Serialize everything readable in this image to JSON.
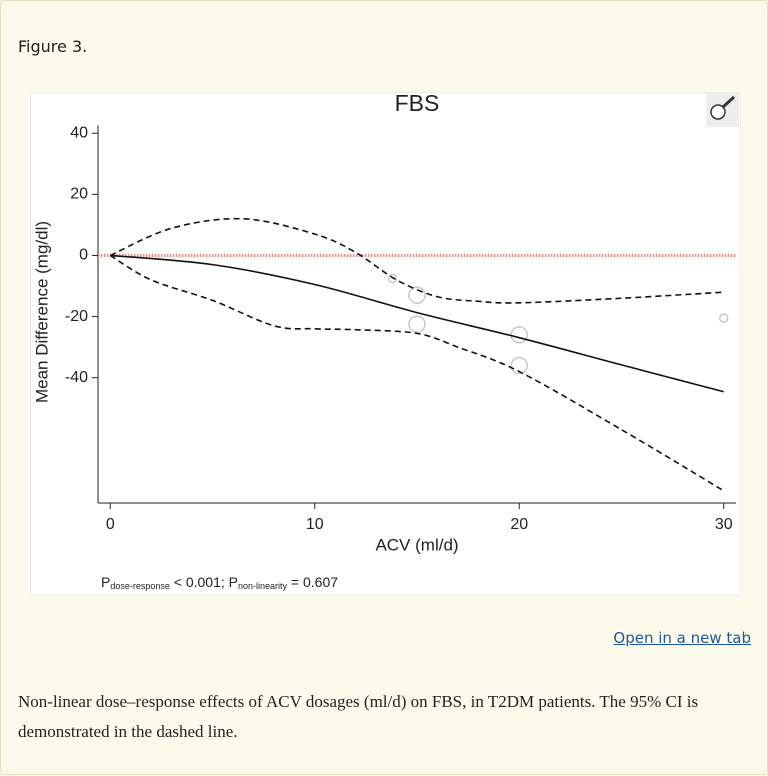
{
  "figure_label": "Figure 3.",
  "link": "Open in a new tab",
  "caption": "Non-linear dose–response effects of ACV dosages (ml/d) on FBS, in T2DM patients. The 95% CI is demonstrated in the dashed line.",
  "chart_data": {
    "type": "line",
    "title": "FBS",
    "x_label": "ACV (ml/d)",
    "y_label": "Mean Difference (mg/dl)",
    "xlim": [
      -0.6,
      30.6
    ],
    "ylim": [
      -81,
      44
    ],
    "xticks": [
      0,
      10,
      20,
      30
    ],
    "yticks": [
      40,
      20,
      0,
      -20,
      -40
    ],
    "reference_line": {
      "value": 0,
      "color": "#e88a8a"
    },
    "series": [
      {
        "color": "#111111",
        "dash": false,
        "x": [
          0,
          5,
          10,
          15,
          20,
          25,
          30
        ],
        "values": [
          0,
          -3,
          -9.5,
          -18.7,
          -26.9,
          -35.8,
          -44.6
        ]
      },
      {
        "color": "#111111",
        "dash": true,
        "x": [
          0,
          3,
          6.5,
          10,
          12,
          14,
          16,
          18,
          20,
          25,
          30
        ],
        "values": [
          0,
          8.9,
          12,
          7,
          1,
          -8,
          -13.5,
          -15,
          -15.5,
          -14,
          -12
        ]
      },
      {
        "color": "#111111",
        "dash": true,
        "x": [
          0,
          2,
          5,
          8,
          10,
          12,
          15,
          17,
          20,
          25,
          30
        ],
        "values": [
          0,
          -8,
          -14.7,
          -23,
          -24,
          -24.3,
          -25.5,
          -30,
          -38,
          -57,
          -77
        ]
      }
    ],
    "points": {
      "color": "#c8c8c8",
      "x": [
        13.8,
        15,
        15,
        20,
        20,
        30
      ],
      "values": [
        -7.5,
        -13,
        -22.5,
        -26,
        -36,
        -20.5
      ],
      "sizes": [
        1,
        2,
        2,
        2,
        2,
        1
      ]
    },
    "annotation": [
      "P",
      "dose-response",
      " < 0.001; P",
      "non-linearity",
      " = 0.607"
    ]
  }
}
